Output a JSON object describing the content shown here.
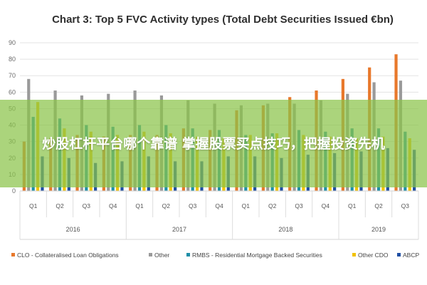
{
  "overlay": {
    "text": "炒股杠杆平台哪个靠谱 掌握股票买点技巧，把握投资先机"
  },
  "chart_data": {
    "type": "bar",
    "title": "Chart 3: Top 5 FVC Activity types (Total Debt Securities Issued €bn)",
    "ylim": [
      0,
      90
    ],
    "yticks": [
      0,
      10,
      20,
      30,
      40,
      50,
      60,
      70,
      80,
      90
    ],
    "grid": true,
    "legend_position": "bottom",
    "categories": [
      "Q1",
      "Q2",
      "Q3",
      "Q4",
      "Q1",
      "Q2",
      "Q3",
      "Q4",
      "Q1",
      "Q2",
      "Q3",
      "Q4",
      "Q1",
      "Q2",
      "Q3"
    ],
    "groups": [
      {
        "label": "2016",
        "count": 4
      },
      {
        "label": "2017",
        "count": 4
      },
      {
        "label": "2018",
        "count": 4
      },
      {
        "label": "2019",
        "count": 3
      }
    ],
    "series": [
      {
        "name": "CLO - Collateralised Loan Obligations",
        "color": "#e8782b",
        "values": [
          30,
          32,
          34,
          33,
          34,
          34,
          38,
          37,
          49,
          52,
          57,
          61,
          68,
          75,
          83
        ]
      },
      {
        "name": "Other",
        "color": "#9a9a9a",
        "values": [
          68,
          61,
          58,
          59,
          61,
          58,
          55,
          53,
          52,
          53,
          53,
          55,
          59,
          66,
          67
        ]
      },
      {
        "name": "RMBS - Residential Mortgage Backed Securities",
        "color": "#1f8fa8",
        "values": [
          45,
          44,
          40,
          39,
          40,
          40,
          38,
          37,
          34,
          35,
          37,
          36,
          38,
          38,
          36
        ]
      },
      {
        "name": "Other CDO",
        "color": "#f2c200",
        "values": [
          54,
          38,
          36,
          34,
          36,
          35,
          33,
          32,
          34,
          35,
          34,
          33,
          32,
          33,
          32
        ]
      },
      {
        "name": "ABCP",
        "color": "#1f4fa3",
        "values": [
          21,
          20,
          17,
          18,
          21,
          18,
          18,
          21,
          21,
          20,
          22,
          23,
          24,
          26,
          25
        ]
      }
    ]
  }
}
